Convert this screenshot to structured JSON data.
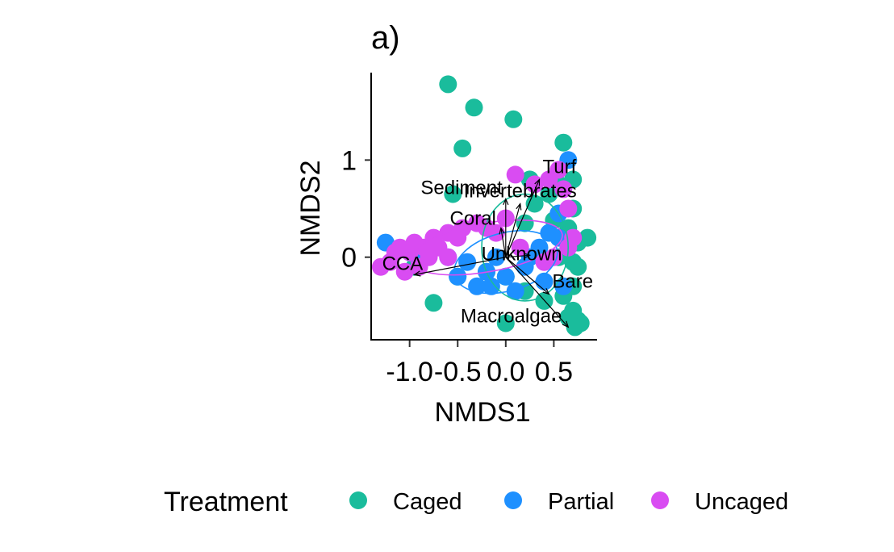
{
  "chart_data": {
    "type": "scatter",
    "title": "a)",
    "xlabel": "NMDS1",
    "ylabel": "NMDS2",
    "xlim": [
      -1.4,
      0.95
    ],
    "ylim": [
      -0.85,
      1.9
    ],
    "x_ticks": [
      -1.0,
      -0.5,
      0.0,
      0.5
    ],
    "x_tick_labels": [
      "-1.0",
      "-0.5",
      "0.0",
      "0.5"
    ],
    "y_ticks": [
      0,
      1
    ],
    "y_tick_labels": [
      "0",
      "1"
    ],
    "grid": false,
    "legend_position": "bottom",
    "legend_title": "Treatment",
    "series": [
      {
        "name": "Caged",
        "color": "#1ABC9C",
        "points": [
          [
            -0.6,
            1.78
          ],
          [
            -0.33,
            1.54
          ],
          [
            0.08,
            1.42
          ],
          [
            -0.45,
            1.12
          ],
          [
            0.6,
            1.18
          ],
          [
            0.7,
            0.8
          ],
          [
            0.25,
            0.8
          ],
          [
            0.55,
            0.75
          ],
          [
            0.7,
            0.5
          ],
          [
            0.5,
            0.38
          ],
          [
            0.65,
            0.3
          ],
          [
            0.85,
            0.2
          ],
          [
            0.75,
            0.15
          ],
          [
            0.7,
            -0.05
          ],
          [
            0.75,
            -0.1
          ],
          [
            0.7,
            -0.3
          ],
          [
            0.6,
            -0.4
          ],
          [
            0.4,
            -0.45
          ],
          [
            0.2,
            -0.35
          ],
          [
            0.0,
            -0.2
          ],
          [
            -0.2,
            -0.15
          ],
          [
            -0.5,
            -0.2
          ],
          [
            0.7,
            -0.55
          ],
          [
            0.75,
            -0.65
          ],
          [
            0.78,
            -0.68
          ],
          [
            0.65,
            -0.62
          ],
          [
            0.72,
            -0.72
          ],
          [
            0.0,
            -0.68
          ],
          [
            -0.75,
            -0.47
          ],
          [
            -0.55,
            0.65
          ],
          [
            -0.95,
            -0.1
          ],
          [
            0.55,
            0.0
          ],
          [
            0.3,
            0.55
          ],
          [
            0.45,
            0.65
          ],
          [
            0.2,
            0.35
          ]
        ]
      },
      {
        "name": "Partial",
        "color": "#1E90FF",
        "points": [
          [
            -1.25,
            0.15
          ],
          [
            -0.9,
            0.0
          ],
          [
            0.65,
            1.0
          ],
          [
            0.55,
            0.45
          ],
          [
            0.45,
            0.25
          ],
          [
            0.35,
            0.1
          ],
          [
            0.2,
            -0.1
          ],
          [
            0.0,
            -0.2
          ],
          [
            -0.2,
            -0.15
          ],
          [
            -0.4,
            -0.05
          ],
          [
            -0.6,
            0.0
          ],
          [
            -0.3,
            -0.3
          ],
          [
            0.1,
            -0.35
          ],
          [
            0.55,
            0.2
          ],
          [
            0.4,
            -0.25
          ],
          [
            -0.1,
            0.0
          ],
          [
            -0.5,
            -0.2
          ],
          [
            0.25,
            0.0
          ],
          [
            0.6,
            -0.3
          ],
          [
            -0.15,
            -0.3
          ]
        ]
      },
      {
        "name": "Uncaged",
        "color": "#D94CF2",
        "points": [
          [
            -1.3,
            -0.1
          ],
          [
            -1.2,
            -0.05
          ],
          [
            -1.1,
            0.1
          ],
          [
            -1.0,
            0.05
          ],
          [
            -0.95,
            0.15
          ],
          [
            -0.85,
            0.1
          ],
          [
            -0.8,
            0.0
          ],
          [
            -0.75,
            0.2
          ],
          [
            -0.7,
            0.1
          ],
          [
            -0.6,
            0.25
          ],
          [
            -0.5,
            0.2
          ],
          [
            -0.45,
            0.3
          ],
          [
            -0.3,
            0.35
          ],
          [
            -0.2,
            0.3
          ],
          [
            -0.1,
            0.25
          ],
          [
            0.1,
            0.85
          ],
          [
            0.3,
            0.75
          ],
          [
            0.45,
            0.8
          ],
          [
            0.6,
            0.7
          ],
          [
            0.65,
            0.5
          ],
          [
            0.7,
            0.2
          ],
          [
            0.65,
            0.1
          ],
          [
            0.5,
            0.0
          ],
          [
            0.4,
            -0.05
          ],
          [
            -1.05,
            -0.15
          ],
          [
            -0.9,
            -0.1
          ],
          [
            0.15,
            0.1
          ],
          [
            -0.6,
            0.0
          ],
          [
            0.55,
            0.9
          ],
          [
            0.0,
            0.4
          ],
          [
            -1.15,
            0.05
          ]
        ]
      }
    ],
    "vectors": [
      {
        "name": "Turf",
        "x": 0.35,
        "y": 0.8
      },
      {
        "name": "Invertebrates",
        "x": 0.15,
        "y": 0.55
      },
      {
        "name": "Sediment",
        "x": 0.0,
        "y": 0.6
      },
      {
        "name": "Coral",
        "x": -0.05,
        "y": 0.3
      },
      {
        "name": "CCA",
        "x": -0.95,
        "y": -0.18
      },
      {
        "name": "Unknown",
        "x": 0.25,
        "y": 0.02
      },
      {
        "name": "Bare",
        "x": 0.45,
        "y": -0.38
      },
      {
        "name": "Macroalgae",
        "x": 0.65,
        "y": -0.72
      }
    ],
    "ellipses": [
      {
        "group": "Caged",
        "cx": 0.2,
        "cy": 0.1,
        "rx": 0.45,
        "ry": 0.55,
        "angle": 0
      },
      {
        "group": "Partial",
        "cx": 0.0,
        "cy": -0.05,
        "rx": 0.55,
        "ry": 0.3,
        "angle": 15
      },
      {
        "group": "Uncaged",
        "cx": -0.2,
        "cy": 0.1,
        "rx": 0.8,
        "ry": 0.25,
        "angle": 10
      }
    ]
  }
}
